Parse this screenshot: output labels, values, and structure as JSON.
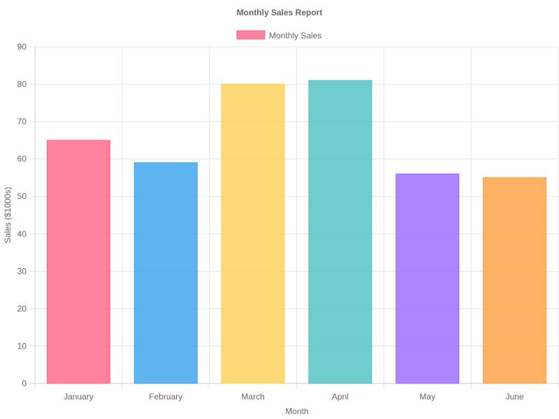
{
  "chart_data": {
    "type": "bar",
    "title": "Monthly Sales Report",
    "xlabel": "Month",
    "ylabel": "Sales ($1000s)",
    "categories": [
      "January",
      "February",
      "March",
      "April",
      "May",
      "June"
    ],
    "series": [
      {
        "name": "Monthly Sales",
        "values": [
          65,
          59,
          80,
          81,
          56,
          55
        ]
      }
    ],
    "ylim": [
      0,
      90
    ],
    "yticks": [
      0,
      10,
      20,
      30,
      40,
      50,
      60,
      70,
      80,
      90
    ],
    "grid": true,
    "legend_position": "top-center",
    "legend_color": "#ff6384",
    "bar_fill_colors": [
      "#ff6384",
      "#36a2eb",
      "#ffce56",
      "#4bc0c0",
      "#9966ff",
      "#ff9f40"
    ],
    "bar_fill_opacity": 0.8,
    "bar_border_colors": [
      "#ff6384",
      "#36a2eb",
      "#ffce56",
      "#4bc0c0",
      "#9966ff",
      "#ff9f40"
    ],
    "grid_color": "#e5e5e5",
    "text_color": "#666666"
  }
}
